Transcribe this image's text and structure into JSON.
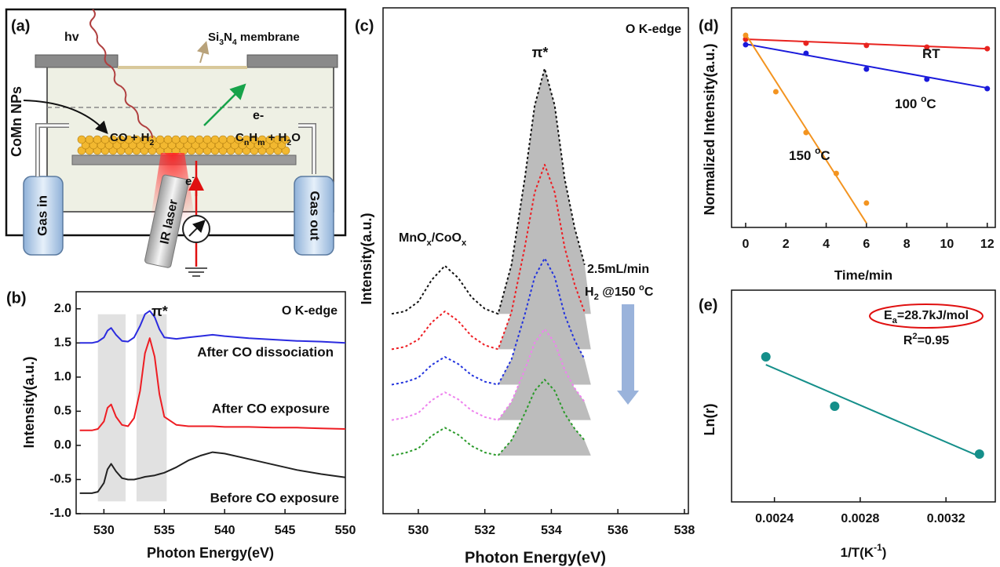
{
  "diagram": {
    "panel_label": "(a)",
    "hv": "hv",
    "membrane": [
      "Si",
      "3",
      "N",
      "4",
      " membrane"
    ],
    "particles": "CoMn NPs",
    "electron_out": "e-",
    "reactants": [
      "CO + H",
      "2"
    ],
    "products": [
      "C",
      "n",
      "H",
      "m",
      " + H",
      "2",
      "O"
    ],
    "electron_in": [
      "e",
      "-"
    ],
    "gas_in": "Gas in",
    "laser": "IR laser",
    "gas_out": "Gas out"
  },
  "chart_data": [
    {
      "type": "line",
      "panel_label": "(b)",
      "x_label": "Photon Energy(eV)",
      "y_label": "Intensity(a.u.)",
      "edge_label": "O K-edge",
      "pi_label": "π*",
      "shaded_regions": [
        [
          529.5,
          531.8
        ],
        [
          532.7,
          535.2
        ]
      ],
      "x": [
        528,
        529,
        529.5,
        530,
        530.3,
        530.6,
        531,
        531.5,
        532,
        532.5,
        533,
        533.4,
        533.8,
        534.2,
        534.6,
        535,
        536,
        537,
        538,
        539,
        540,
        542,
        544,
        546,
        548,
        550
      ],
      "series": [
        {
          "name": "After CO dissociation",
          "color": "#2b2bdf",
          "values": [
            1.5,
            1.5,
            1.52,
            1.58,
            1.68,
            1.72,
            1.62,
            1.53,
            1.52,
            1.58,
            1.75,
            1.92,
            1.97,
            1.88,
            1.7,
            1.58,
            1.56,
            1.58,
            1.6,
            1.62,
            1.6,
            1.57,
            1.55,
            1.53,
            1.52,
            1.5
          ]
        },
        {
          "name": "After CO exposure",
          "color": "#ee1d23",
          "values": [
            0.22,
            0.22,
            0.24,
            0.35,
            0.55,
            0.6,
            0.42,
            0.3,
            0.28,
            0.4,
            0.8,
            1.35,
            1.57,
            1.3,
            0.75,
            0.42,
            0.3,
            0.28,
            0.28,
            0.28,
            0.27,
            0.27,
            0.26,
            0.26,
            0.25,
            0.24
          ]
        },
        {
          "name": "Before CO exposure",
          "color": "#222222",
          "values": [
            -0.7,
            -0.7,
            -0.68,
            -0.55,
            -0.35,
            -0.27,
            -0.38,
            -0.48,
            -0.5,
            -0.5,
            -0.48,
            -0.46,
            -0.45,
            -0.44,
            -0.42,
            -0.4,
            -0.32,
            -0.22,
            -0.15,
            -0.1,
            -0.12,
            -0.2,
            -0.28,
            -0.36,
            -0.42,
            -0.47
          ]
        }
      ],
      "xlim": [
        527.7,
        550
      ],
      "xticks": [
        530,
        535,
        540,
        545,
        550
      ],
      "ylim": [
        -1.0,
        2.25
      ],
      "yticks": [
        {
          "value": -1,
          "label": "-1.0"
        },
        -0.5,
        {
          "value": 0,
          "label": "0.0"
        },
        0.5,
        {
          "value": 1,
          "label": "1.0"
        },
        1.5,
        {
          "value": 2,
          "label": "2.0"
        }
      ]
    },
    {
      "type": "line",
      "line_style": "dotted",
      "panel_label": "(c)",
      "x_label": "Photon Energy(eV)",
      "y_label": "Intensity(a.u.)",
      "edge_label": "O K-edge",
      "pi_label": "π*",
      "oxide_label": [
        "MnO",
        "x",
        "/CoO",
        "x"
      ],
      "flow_label": "2.5mL/min",
      "condition_label": [
        "H",
        "2",
        " @150 ",
        "o",
        "C"
      ],
      "x": [
        529.2,
        529.6,
        530,
        530.4,
        530.8,
        531.2,
        531.6,
        532,
        532.4,
        532.8,
        533.2,
        533.5,
        533.8,
        534.1,
        534.4,
        534.7,
        535
      ],
      "series": [
        {
          "color": "#111111",
          "values": [
            3.95,
            4.0,
            4.19,
            4.62,
            4.9,
            4.66,
            4.28,
            4.05,
            3.95,
            4.92,
            6.62,
            8.07,
            8.8,
            8.07,
            6.62,
            5.65,
            4.92
          ]
        },
        {
          "color": "#ee1d23",
          "values": [
            3.25,
            3.3,
            3.44,
            3.78,
            4.0,
            3.81,
            3.51,
            3.33,
            3.25,
            3.98,
            5.26,
            6.35,
            6.9,
            6.35,
            5.26,
            4.53,
            3.98
          ]
        },
        {
          "color": "#2233dd",
          "values": [
            2.55,
            2.6,
            2.69,
            2.94,
            3.1,
            2.96,
            2.74,
            2.61,
            2.55,
            3.05,
            3.93,
            4.68,
            5.05,
            4.68,
            3.93,
            3.43,
            3.05
          ]
        },
        {
          "color": "#ee82ee",
          "values": [
            1.85,
            1.9,
            1.99,
            2.24,
            2.4,
            2.26,
            2.04,
            1.91,
            1.85,
            2.21,
            2.84,
            3.38,
            3.65,
            3.38,
            2.84,
            2.48,
            2.21
          ]
        },
        {
          "color": "#2a9a2a",
          "values": [
            1.15,
            1.2,
            1.29,
            1.54,
            1.7,
            1.56,
            1.34,
            1.21,
            1.15,
            1.45,
            1.98,
            2.43,
            2.65,
            2.43,
            1.98,
            1.68,
            1.45
          ]
        }
      ],
      "xlim": [
        528.94,
        538.12
      ],
      "xticks": [
        530,
        532,
        534,
        536,
        538
      ],
      "ylim": [
        0,
        10
      ]
    },
    {
      "type": "scatter",
      "panel_label": "(d)",
      "x_label": "Time/min",
      "y_label": "Normalized Intensity(a.u.)",
      "series": [
        {
          "name": [
            "RT"
          ],
          "color": "#e8231f",
          "x": [
            0,
            3,
            6,
            9,
            12
          ],
          "values": [
            0.857,
            0.839,
            0.829,
            0.821,
            0.814
          ],
          "fit_x": [
            0,
            12
          ],
          "fit_values": [
            0.857,
            0.814
          ]
        },
        {
          "name": [
            "100 ",
            "o",
            "C"
          ],
          "color": "#1a1adb",
          "x": [
            0,
            3,
            6,
            9,
            12
          ],
          "values": [
            0.832,
            0.793,
            0.721,
            0.675,
            0.632
          ],
          "fit_x": [
            0,
            12
          ],
          "fit_values": [
            0.835,
            0.635
          ]
        },
        {
          "name": [
            "150 ",
            "o",
            "C"
          ],
          "color": "#f39420",
          "x": [
            0,
            1.5,
            3,
            4.5,
            6
          ],
          "values": [
            0.875,
            0.618,
            0.432,
            0.246,
            0.111
          ],
          "fit_x": [
            0,
            6
          ],
          "fit_values": [
            0.88,
            0.02
          ]
        }
      ],
      "xlim": [
        -0.7,
        12.4
      ],
      "xticks": [
        0,
        2,
        4,
        6,
        8,
        10,
        12
      ],
      "ylim": [
        0,
        1
      ]
    },
    {
      "type": "scatter",
      "panel_label": "(e)",
      "x_label": [
        "1/T(K",
        "-1",
        ")"
      ],
      "y_label": "Ln(r)",
      "energy_label": [
        "E",
        "a",
        "=28.7kJ/mol"
      ],
      "r2_label": [
        "R",
        "2",
        "=0.95"
      ],
      "series": [
        {
          "color": "#158f8a",
          "x": [
            0.00236,
            0.002681,
            0.003356
          ],
          "values": [
            0.685,
            0.452,
            0.226
          ],
          "fit_x": [
            0.00236,
            0.003356
          ],
          "fit_values": [
            0.648,
            0.215
          ]
        }
      ],
      "xlim": [
        0.0022,
        0.00343
      ],
      "xticks": [
        0.0024,
        0.0028,
        0.0032
      ],
      "ylim": [
        0,
        1
      ]
    }
  ]
}
